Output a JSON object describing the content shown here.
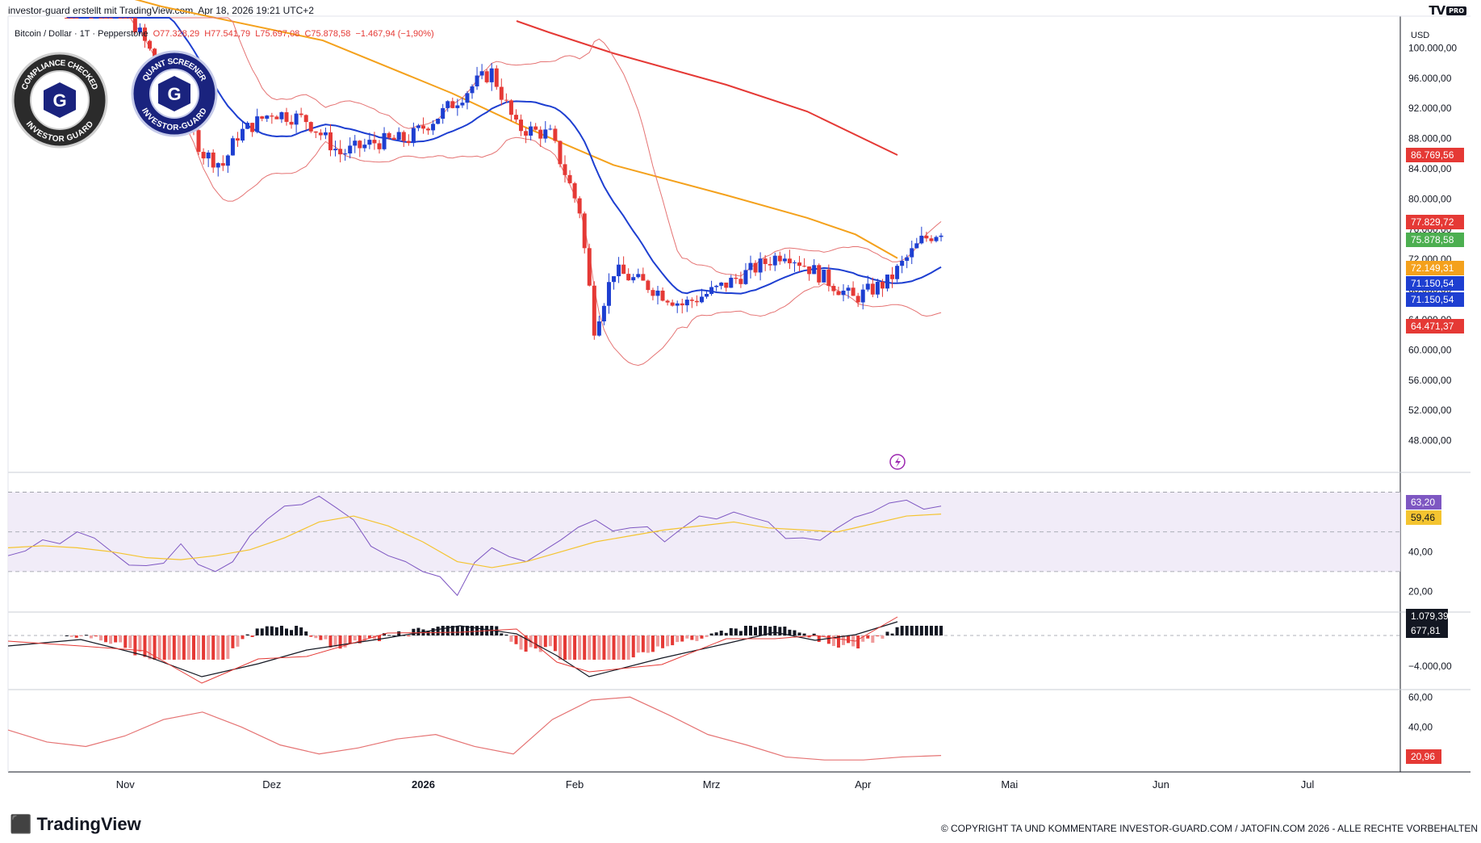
{
  "header": {
    "title": "investor-guard erstellt mit TradingView.com, Apr 18, 2026 19:21 UTC+2",
    "logo": "TV",
    "logo_badge": "PRO"
  },
  "legend": {
    "symbol": "Bitcoin / Dollar · 1T · Pepperstone",
    "open": "O77.328,29",
    "high": "H77.541,79",
    "low": "L75.697,08",
    "close": "C75.878,58",
    "change": "−1.467,94 (−1,90%)"
  },
  "badges": {
    "left_top": "COMPLIANCE CHECKED",
    "left_bottom": "INVESTOR GUARD",
    "right_top": "QUANT SCREENER",
    "right_bottom": "INVESTOR-GUARD",
    "letter": "G"
  },
  "footer": {
    "logo": "TradingView",
    "copyright": "© COPYRIGHT TA UND KOMMENTARE INVESTOR-GUARD.COM / JATOFIN.COM 2026 - ALLE RECHTE VORBEHALTEN"
  },
  "chart_data": [
    {
      "type": "candlestick",
      "title": "Bitcoin / Dollar",
      "currency": "USD",
      "ylim": [
        44000,
        104000
      ],
      "y_ticks": [
        "100.000,00",
        "96.000,00",
        "92.000,00",
        "88.000,00",
        "84.000,00",
        "80.000,00",
        "76.000,00",
        "72.000,00",
        "68.000,00",
        "64.000,00",
        "60.000,00",
        "56.000,00",
        "52.000,00",
        "48.000,00"
      ],
      "x_labels": [
        "Nov",
        "Dez",
        "2026",
        "Feb",
        "Mrz",
        "Apr",
        "Mai",
        "Jun",
        "Jul"
      ],
      "close_series": [
        {
          "date": "2025-10-20",
          "close": 110500
        },
        {
          "date": "2025-10-27",
          "close": 109000
        },
        {
          "date": "2025-11-03",
          "close": 103000
        },
        {
          "date": "2025-11-10",
          "close": 95000
        },
        {
          "date": "2025-11-17",
          "close": 86000
        },
        {
          "date": "2025-11-21",
          "close": 84500
        },
        {
          "date": "2025-11-24",
          "close": 88500
        },
        {
          "date": "2025-12-01",
          "close": 91500
        },
        {
          "date": "2025-12-08",
          "close": 90500
        },
        {
          "date": "2025-12-15",
          "close": 86000
        },
        {
          "date": "2025-12-22",
          "close": 87500
        },
        {
          "date": "2025-12-29",
          "close": 88000
        },
        {
          "date": "2026-01-05",
          "close": 91500
        },
        {
          "date": "2026-01-12",
          "close": 95500
        },
        {
          "date": "2026-01-15",
          "close": 96800
        },
        {
          "date": "2026-01-20",
          "close": 89500
        },
        {
          "date": "2026-01-27",
          "close": 88500
        },
        {
          "date": "2026-02-02",
          "close": 78500
        },
        {
          "date": "2026-02-05",
          "close": 63000
        },
        {
          "date": "2026-02-09",
          "close": 70500
        },
        {
          "date": "2026-02-16",
          "close": 68500
        },
        {
          "date": "2026-02-23",
          "close": 66000
        },
        {
          "date": "2026-03-02",
          "close": 68000
        },
        {
          "date": "2026-03-09",
          "close": 70500
        },
        {
          "date": "2026-03-16",
          "close": 73000
        },
        {
          "date": "2026-03-23",
          "close": 70000
        },
        {
          "date": "2026-03-30",
          "close": 66800
        },
        {
          "date": "2026-04-06",
          "close": 69000
        },
        {
          "date": "2026-04-13",
          "close": 74500
        },
        {
          "date": "2026-04-17",
          "close": 75879
        }
      ],
      "overlays": [
        {
          "name": "MA200",
          "color": "#e53935",
          "values": [
            {
              "date": "2026-01-01",
              "v": 104500
            },
            {
              "date": "2026-04-17",
              "v": 86770
            }
          ]
        },
        {
          "name": "MA50",
          "color": "#f4a11c",
          "values": [
            {
              "date": "2025-10-20",
              "v": 111000
            },
            {
              "date": "2026-01-20",
              "v": 90500
            },
            {
              "date": "2026-03-01",
              "v": 81000
            },
            {
              "date": "2026-04-17",
              "v": 72149
            }
          ]
        },
        {
          "name": "Bollinger Basis",
          "color": "#1e3fd1",
          "values": [
            {
              "date": "2026-02-25",
              "v": 67000
            },
            {
              "date": "2026-04-17",
              "v": 71151
            }
          ]
        }
      ],
      "price_labels": [
        {
          "text": "86.769,56",
          "bg": "#e53935"
        },
        {
          "text": "77.829,72",
          "bg": "#e53935"
        },
        {
          "text": "75.878,58",
          "bg": "#4caf50"
        },
        {
          "text": "72.149,31",
          "bg": "#f4a11c"
        },
        {
          "text": "71.150,54",
          "bg": "#1e3fd1"
        },
        {
          "text": "71.150,54",
          "bg": "#1e3fd1"
        },
        {
          "text": "64.471,37",
          "bg": "#e53935"
        }
      ]
    },
    {
      "type": "line",
      "title": "RSI",
      "ylim": [
        10,
        80
      ],
      "band": [
        30,
        70
      ],
      "y_ticks": [
        "20,00",
        "40,00"
      ],
      "series": [
        {
          "color": "#7e57c2",
          "values": [
            38,
            46,
            50,
            40,
            33,
            44,
            30,
            48,
            63,
            68,
            56,
            38,
            30,
            18,
            42,
            35,
            46,
            56,
            52,
            45,
            58,
            60,
            55,
            47,
            52,
            60,
            66,
            63
          ]
        },
        {
          "color": "#f4c430",
          "values": [
            42,
            43,
            42,
            40,
            37,
            36,
            38,
            41,
            47,
            55,
            58,
            53,
            45,
            35,
            32,
            35,
            40,
            45,
            48,
            51,
            53,
            55,
            52,
            51,
            50,
            54,
            58,
            59
          ]
        }
      ],
      "value_labels": [
        {
          "text": "63,20",
          "bg": "#7e57c2"
        },
        {
          "text": "59,46",
          "bg": "#f4c430"
        }
      ]
    },
    {
      "type": "bar",
      "title": "MACD",
      "y_ticks": [
        "−4.000,00"
      ],
      "value_labels": [
        {
          "text": "1.079,39",
          "bg": "#131722"
        },
        {
          "text": "677,81",
          "bg": "#131722"
        }
      ]
    },
    {
      "type": "line",
      "title": "ADX",
      "ylim": [
        10,
        65
      ],
      "y_ticks": [
        "60,00",
        "40,00"
      ],
      "series": [
        {
          "color": "#e57373",
          "values": [
            38,
            30,
            27,
            34,
            45,
            50,
            40,
            28,
            22,
            26,
            32,
            35,
            27,
            22,
            45,
            58,
            60,
            48,
            35,
            28,
            20,
            18,
            18,
            20,
            21
          ]
        }
      ],
      "value_labels": [
        {
          "text": "20,96",
          "bg": "#e53935"
        }
      ]
    }
  ]
}
